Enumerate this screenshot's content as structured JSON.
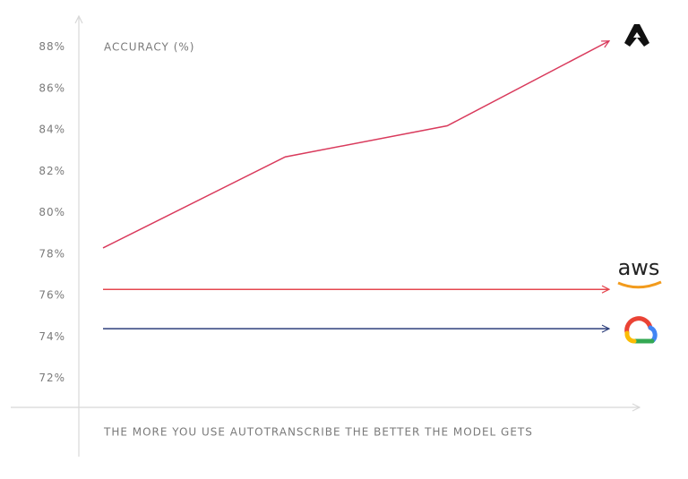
{
  "chart_data": {
    "type": "line",
    "ylabel": "ACCURACY (%)",
    "xlabel": "THE MORE YOU USE AUTOTRANSCRIBE THE BETTER THE MODEL GETS",
    "x": [
      0,
      36,
      68,
      100
    ],
    "xlim": [
      0,
      100
    ],
    "ylim": [
      70.6,
      89.5
    ],
    "yticks": [
      {
        "value": 72,
        "label": "72%"
      },
      {
        "value": 74,
        "label": "74%"
      },
      {
        "value": 76,
        "label": "76%"
      },
      {
        "value": 78,
        "label": "78%"
      },
      {
        "value": 80,
        "label": "80%"
      },
      {
        "value": 82,
        "label": "82%"
      },
      {
        "value": 84,
        "label": "84%"
      },
      {
        "value": 86,
        "label": "86%"
      },
      {
        "value": 88,
        "label": "88%"
      }
    ],
    "series": [
      {
        "color": "#d93a5c",
        "values": [
          78.3,
          82.7,
          84.2,
          88.3
        ]
      },
      {
        "name": "aws",
        "color": "#e5474f",
        "values": [
          76.3,
          76.3,
          76.3,
          76.3
        ]
      },
      {
        "color": "#2d3f7c",
        "values": [
          74.4,
          74.4,
          74.4,
          74.4
        ]
      }
    ]
  }
}
